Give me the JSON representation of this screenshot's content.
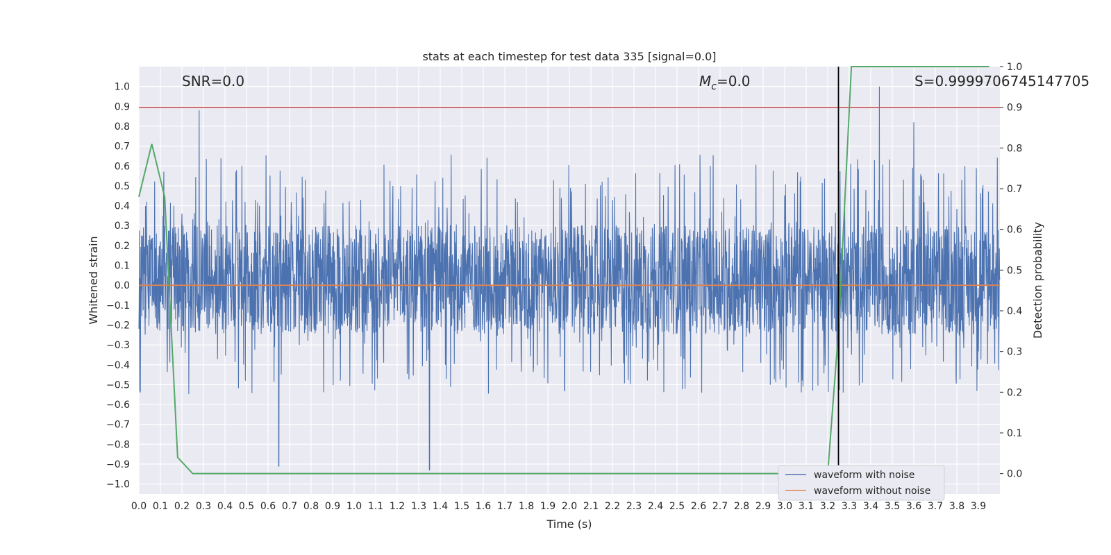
{
  "chart_data": {
    "type": "line",
    "title": "stats at each timestep for test data 335 [signal=0.0]",
    "xlabel": "Time (s)",
    "ylabel": "Whitened strain",
    "y2label": "Detection probability",
    "xlim": [
      0.0,
      4.0
    ],
    "ylim": [
      -1.05,
      1.1
    ],
    "y2lim": [
      -0.05,
      1.0
    ],
    "x_ticks": [
      0.0,
      0.1,
      0.2,
      0.3,
      0.4,
      0.5,
      0.6,
      0.7,
      0.8,
      0.9,
      1.0,
      1.1,
      1.2,
      1.3,
      1.4,
      1.5,
      1.6,
      1.7,
      1.8,
      1.9,
      2.0,
      2.1,
      2.2,
      2.3,
      2.4,
      2.5,
      2.6,
      2.7,
      2.8,
      2.9,
      3.0,
      3.1,
      3.2,
      3.3,
      3.4,
      3.5,
      3.6,
      3.7,
      3.8,
      3.9
    ],
    "x_tick_labels": [
      "0.0",
      "0.1",
      "0.2",
      "0.3",
      "0.4",
      "0.5",
      "0.6",
      "0.7",
      "0.8",
      "0.9",
      "1.0",
      "1.1",
      "1.2",
      "1.3",
      "1.4",
      "1.5",
      "1.6",
      "1.7",
      "1.8",
      "1.9",
      "2.0",
      "2.1",
      "2.2",
      "2.3",
      "2.4",
      "2.5",
      "2.6",
      "2.7",
      "2.8",
      "2.9",
      "3.0",
      "3.1",
      "3.2",
      "3.3",
      "3.4",
      "3.5",
      "3.6",
      "3.7",
      "3.8",
      "3.9"
    ],
    "y_ticks": [
      1.0,
      0.9,
      0.8,
      0.7,
      0.6,
      0.5,
      0.4,
      0.3,
      0.2,
      0.1,
      0.0,
      -0.1,
      -0.2,
      -0.3,
      -0.4,
      -0.5,
      -0.6,
      -0.7,
      -0.8,
      -0.9,
      -1.0
    ],
    "y_tick_labels": [
      "1.0",
      "0.9",
      "0.8",
      "0.7",
      "0.6",
      "0.5",
      "0.4",
      "0.3",
      "0.2",
      "0.1",
      "0.0",
      "−0.1",
      "−0.2",
      "−0.3",
      "−0.4",
      "−0.5",
      "−0.6",
      "−0.7",
      "−0.8",
      "−0.9",
      "−1.0"
    ],
    "y2_ticks": [
      1.0,
      0.9,
      0.8,
      0.7,
      0.6,
      0.5,
      0.4,
      0.3,
      0.2,
      0.1,
      0.0
    ],
    "y2_tick_labels": [
      "1.0",
      "0.9",
      "0.8",
      "0.7",
      "0.6",
      "0.5",
      "0.4",
      "0.3",
      "0.2",
      "0.1",
      "0.0"
    ],
    "grid": true,
    "legend_placement": "lower-right",
    "annotations": {
      "snr": "SNR=0.0",
      "mc_symbol": "M",
      "mc_sub": "c",
      "mc_value": "=0.0",
      "score": "S=0.9999706745147705"
    },
    "threshold_y2": 0.9,
    "vertical_line_x": 3.25,
    "series": [
      {
        "name": "waveform with noise",
        "color": "#4c72b0",
        "axis": "left",
        "note_peaks": [
          [
            0.28,
            0.88
          ],
          [
            0.65,
            -0.91
          ],
          [
            1.35,
            -0.93
          ],
          [
            3.44,
            1.0
          ],
          [
            3.6,
            0.82
          ]
        ],
        "typical_range": [
          -0.55,
          0.6
        ]
      },
      {
        "name": "waveform without noise",
        "color": "#dd8452",
        "axis": "left",
        "x": [
          0.0,
          4.0
        ],
        "y": [
          0.0,
          0.0
        ]
      },
      {
        "name": "",
        "color": "#55a868",
        "axis": "right",
        "x": [
          0.0,
          0.06,
          0.12,
          0.18,
          0.25,
          0.3,
          1.0,
          2.0,
          2.9,
          3.0,
          3.1,
          3.2,
          3.25,
          3.31,
          3.5,
          3.95
        ],
        "y": [
          0.68,
          0.81,
          0.68,
          0.04,
          0.0,
          0.0,
          0.0,
          0.0,
          0.0,
          0.0,
          0.0,
          0.0,
          0.35,
          1.0,
          1.0,
          1.0
        ]
      },
      {
        "name": "",
        "color": "#c44e52",
        "axis": "right",
        "x": [
          0.0,
          4.0
        ],
        "y": [
          0.9,
          0.9
        ]
      }
    ]
  }
}
